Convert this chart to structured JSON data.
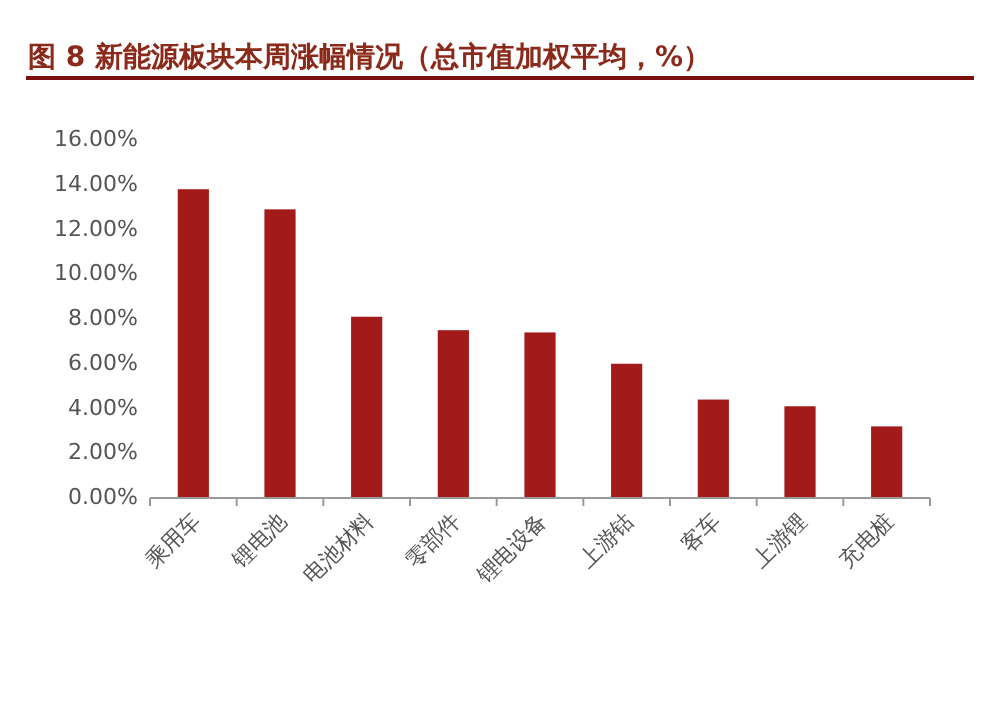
{
  "chart_data": {
    "type": "bar",
    "title": "图 8 新能源板块本周涨幅情况（总市值加权平均，%）",
    "categories": [
      "乘用车",
      "锂电池",
      "电池材料",
      "零部件",
      "锂电设备",
      "上游钴",
      "客车",
      "上游锂",
      "充电桩"
    ],
    "values": [
      13.8,
      12.9,
      8.1,
      7.5,
      7.4,
      6.0,
      4.4,
      4.1,
      3.2
    ],
    "color": "#a31a1a",
    "ylim": [
      0,
      16
    ],
    "yticks": [
      {
        "value": 0,
        "label": "0.00%"
      },
      {
        "value": 2,
        "label": "2.00%"
      },
      {
        "value": 4,
        "label": "4.00%"
      },
      {
        "value": 6,
        "label": "6.00%"
      },
      {
        "value": 8,
        "label": "8.00%"
      },
      {
        "value": 10,
        "label": "10.00%"
      },
      {
        "value": 12,
        "label": "12.00%"
      },
      {
        "value": 14,
        "label": "14.00%"
      },
      {
        "value": 16,
        "label": "16.00%"
      }
    ]
  }
}
